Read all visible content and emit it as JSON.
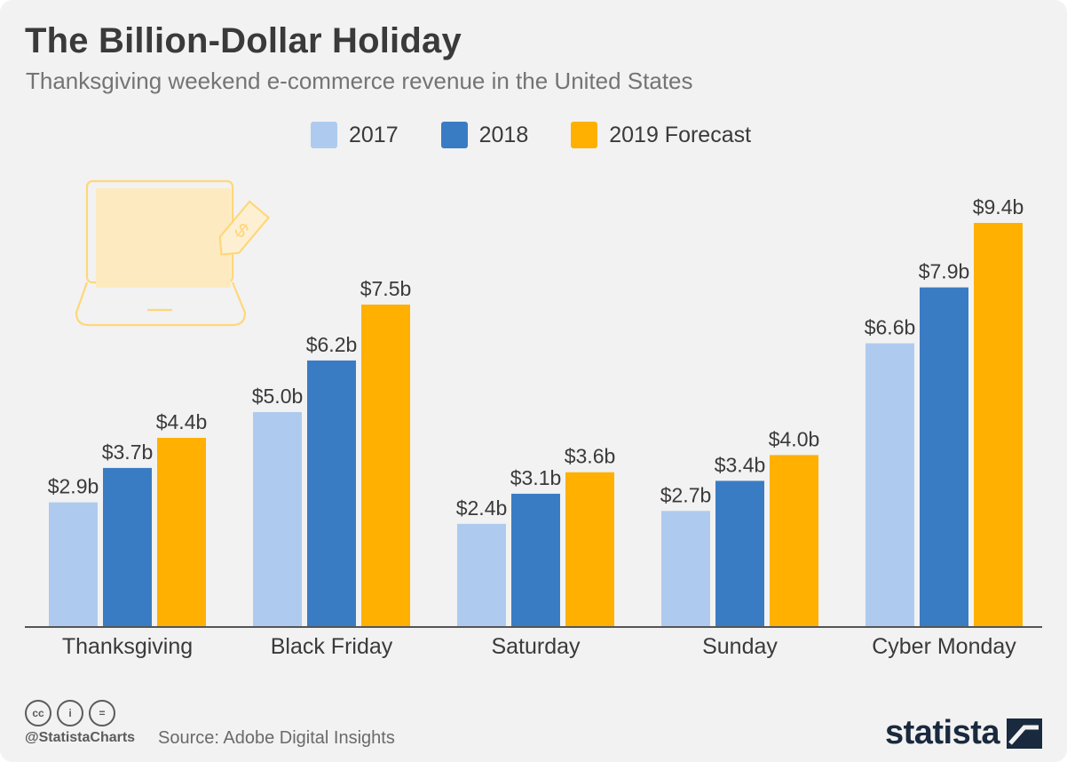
{
  "header": {
    "title": "The Billion-Dollar Holiday",
    "subtitle": "Thanksgiving weekend e-commerce revenue in the United States"
  },
  "colors": {
    "background": "#f2f2f2",
    "series_2017": "#aecbef",
    "series_2018": "#3a7cc4",
    "series_2019": "#ffb000",
    "text": "#3a3a3a"
  },
  "chart_data": {
    "type": "bar",
    "title": "The Billion-Dollar Holiday",
    "subtitle": "Thanksgiving weekend e-commerce revenue in the United States",
    "categories": [
      "Thanksgiving",
      "Black Friday",
      "Saturday",
      "Sunday",
      "Cyber Monday"
    ],
    "series": [
      {
        "name": "2017",
        "values": [
          2.9,
          5.0,
          2.4,
          2.7,
          6.6
        ],
        "labels": [
          "$2.9b",
          "$5.0b",
          "$2.4b",
          "$2.7b",
          "$6.6b"
        ],
        "color": "#aecbef"
      },
      {
        "name": "2018",
        "values": [
          3.7,
          6.2,
          3.1,
          3.4,
          7.9
        ],
        "labels": [
          "$3.7b",
          "$6.2b",
          "$3.1b",
          "$3.4b",
          "$7.9b"
        ],
        "color": "#3a7cc4"
      },
      {
        "name": "2019 Forecast",
        "values": [
          4.4,
          7.5,
          3.6,
          4.0,
          9.4
        ],
        "labels": [
          "$4.4b",
          "$7.5b",
          "$3.6b",
          "$4.0b",
          "$9.4b"
        ],
        "color": "#ffb000"
      }
    ],
    "xlabel": "",
    "ylabel": "",
    "ylim": [
      0,
      9.4
    ],
    "grid": false,
    "legend": "top-center"
  },
  "illustration": {
    "icon": "laptop-price-tag-icon"
  },
  "footer": {
    "license_icons": [
      "cc-icon",
      "by-icon",
      "nd-icon"
    ],
    "license_glyphs": [
      "cc",
      "i",
      "="
    ],
    "handle": "@StatistaCharts",
    "source": "Source: Adobe Digital Insights",
    "brand": "statista",
    "brand_icon": "statista-logo-icon"
  }
}
